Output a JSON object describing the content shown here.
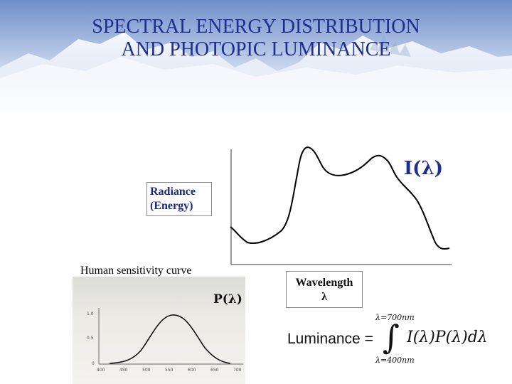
{
  "slide": {
    "title_line1": "SPECTRAL ENERGY DISTRIBUTION",
    "title_line2": "AND PHOTOPIC LUMINANCE",
    "colors": {
      "title": "#1f2f8f",
      "sky": "#6f8fc9"
    }
  },
  "energy_plot": {
    "series_label": "I(λ)",
    "ylabel_line1": "Radiance",
    "ylabel_line2": "(Energy)"
  },
  "sensitivity_plot": {
    "caption": "Human sensitivity curve",
    "series_label": "P(λ)",
    "y_ticks": [
      "1.0",
      "0.5",
      "0"
    ],
    "x_ticks": [
      "400",
      "450",
      "500",
      "550",
      "600",
      "650",
      "700"
    ]
  },
  "wavelength_box": {
    "line1": "Wavelength",
    "line2": "λ"
  },
  "formula": {
    "lhs": "Luminance =",
    "upper_limit": "λ=700nm",
    "lower_limit": "λ=400nm",
    "integral_symbol": "∫",
    "integrand": "I(λ)P(λ)dλ"
  }
}
